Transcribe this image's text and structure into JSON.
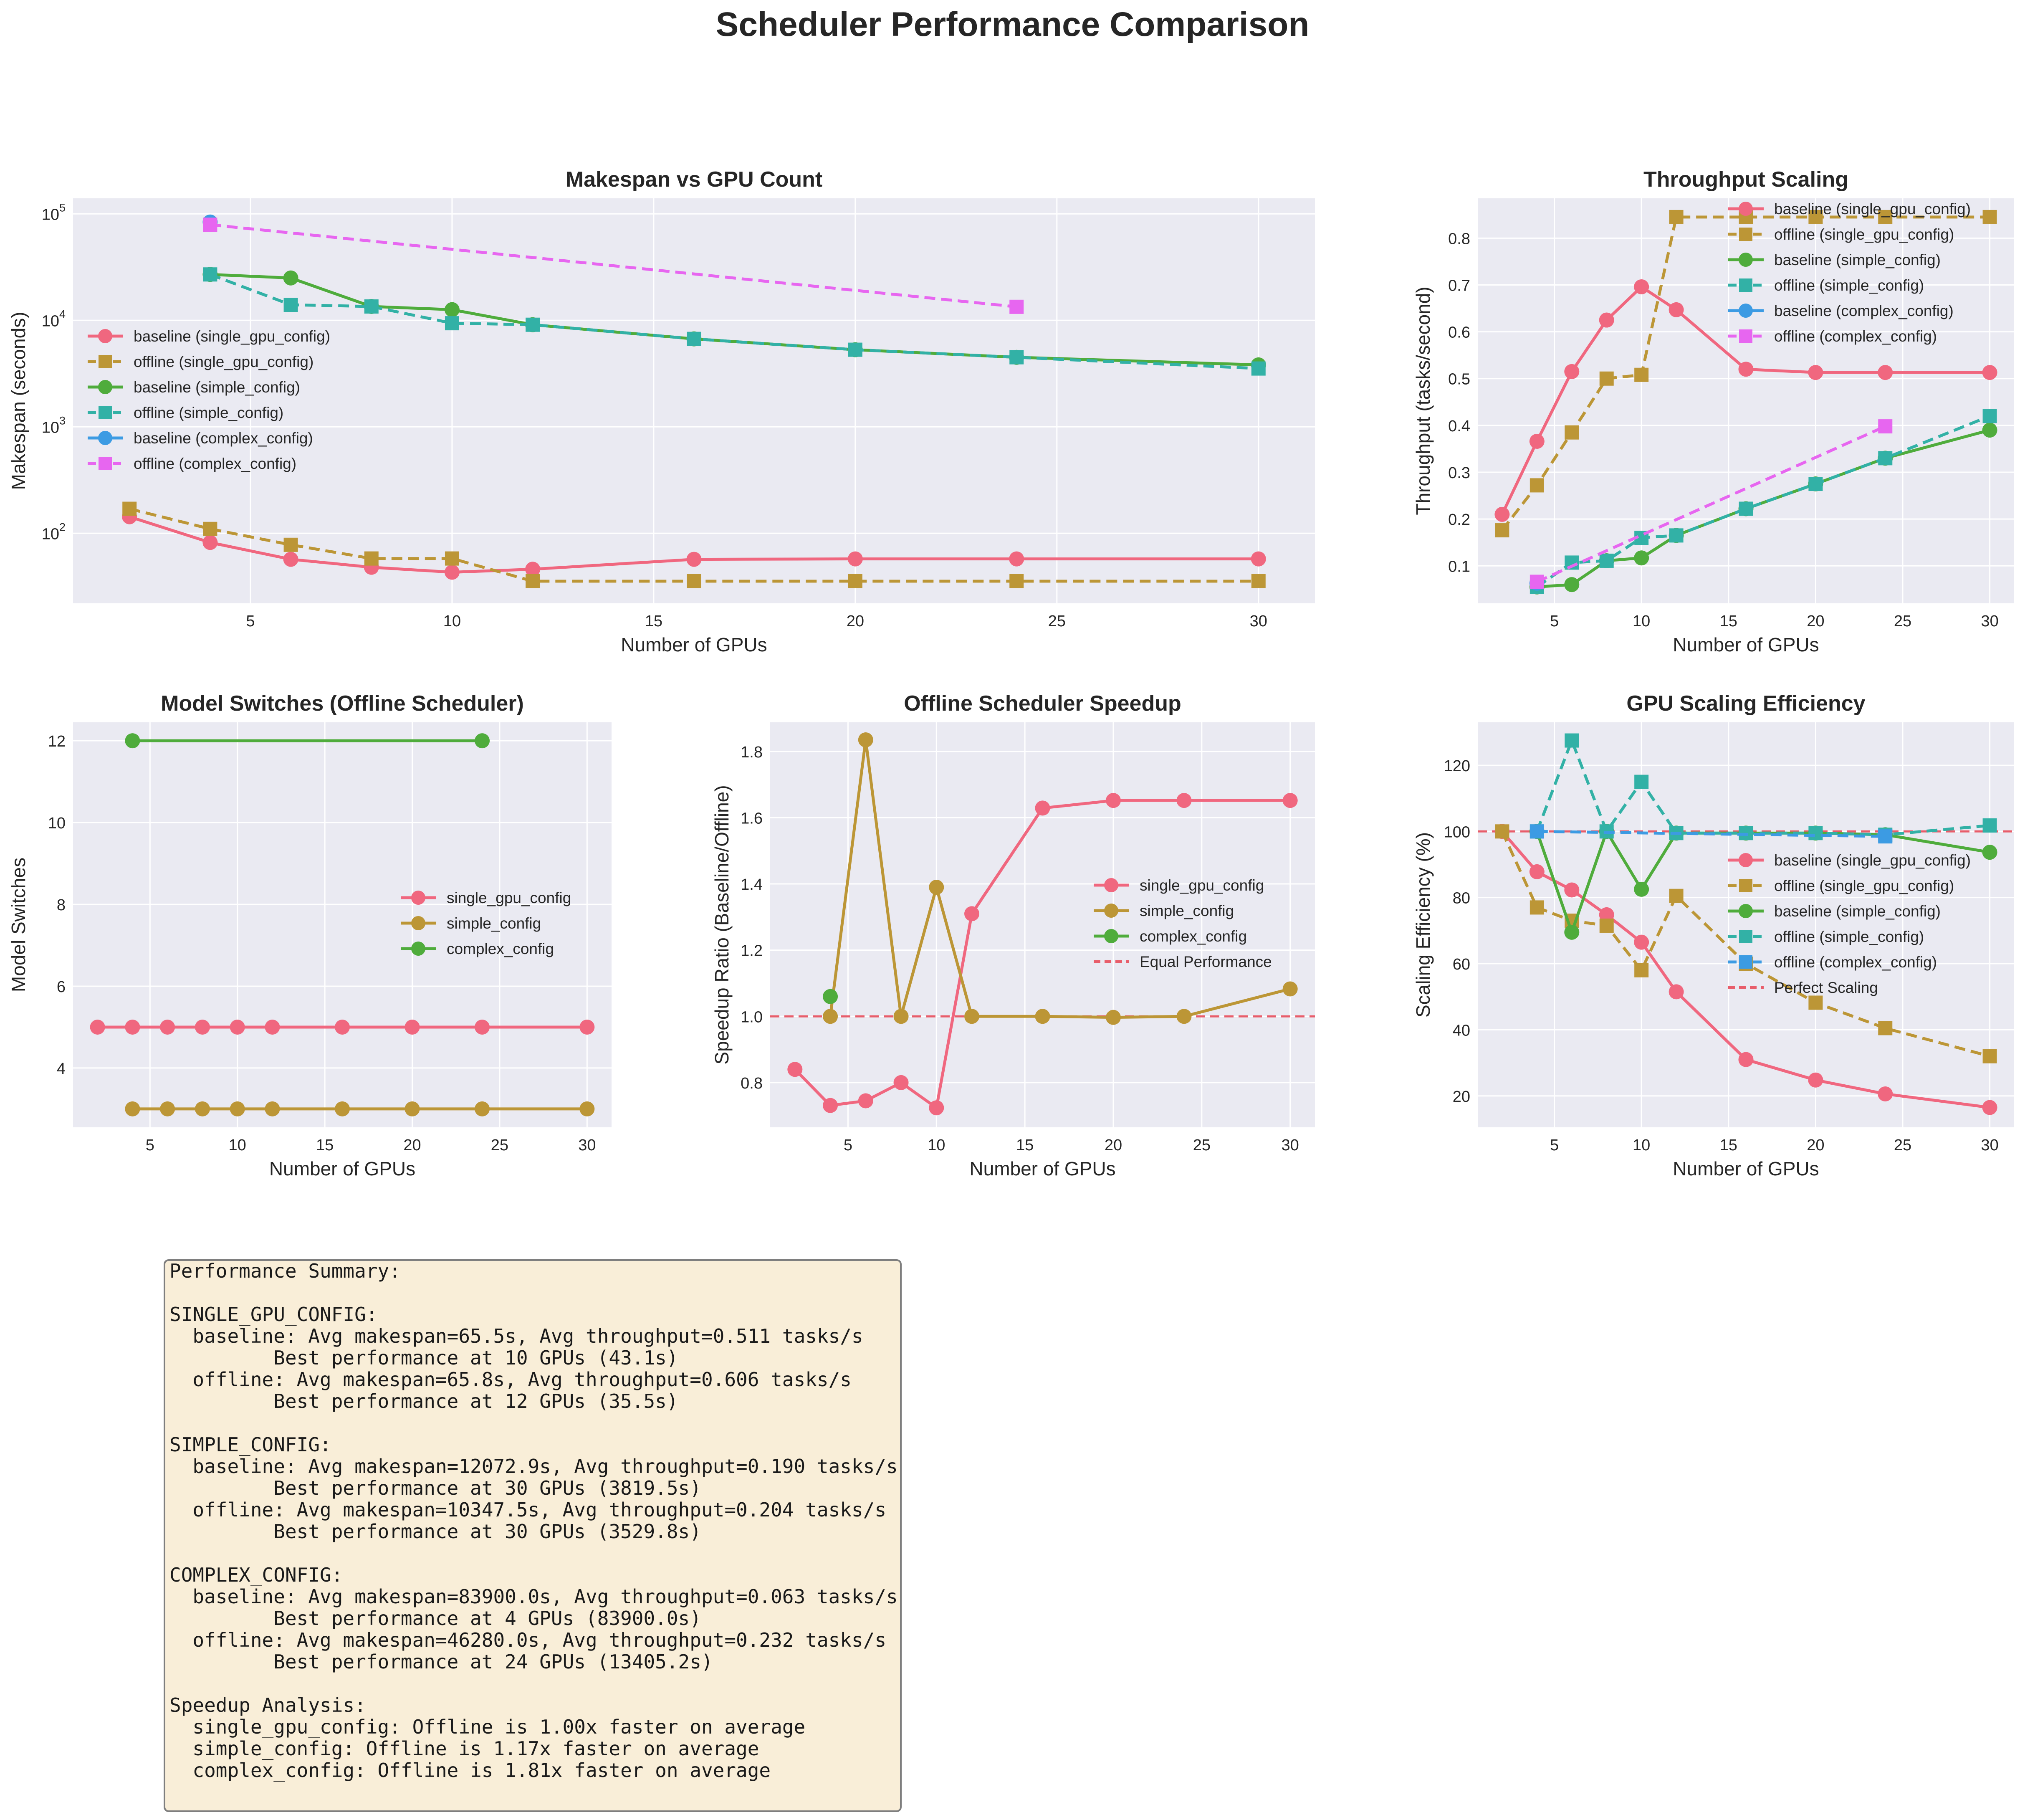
{
  "figure": {
    "title": "Scheduler Performance Comparison",
    "colors": {
      "baseline_single": "#f0677f",
      "offline_single": "#bc9636",
      "baseline_simple": "#4fac3c",
      "offline_simple": "#32b1a6",
      "baseline_complex": "#3c9be3",
      "offline_complex": "#e766f0",
      "reference_line": "#e85d6a"
    }
  },
  "summary": {
    "text": "Performance Summary:\n\nSINGLE_GPU_CONFIG:\n  baseline: Avg makespan=65.5s, Avg throughput=0.511 tasks/s\n         Best performance at 10 GPUs (43.1s)\n  offline: Avg makespan=65.8s, Avg throughput=0.606 tasks/s\n         Best performance at 12 GPUs (35.5s)\n\nSIMPLE_CONFIG:\n  baseline: Avg makespan=12072.9s, Avg throughput=0.190 tasks/s\n         Best performance at 30 GPUs (3819.5s)\n  offline: Avg makespan=10347.5s, Avg throughput=0.204 tasks/s\n         Best performance at 30 GPUs (3529.8s)\n\nCOMPLEX_CONFIG:\n  baseline: Avg makespan=83900.0s, Avg throughput=0.063 tasks/s\n         Best performance at 4 GPUs (83900.0s)\n  offline: Avg makespan=46280.0s, Avg throughput=0.232 tasks/s\n         Best performance at 24 GPUs (13405.2s)\n\nSpeedup Analysis:\n  single_gpu_config: Offline is 1.00x faster on average\n  simple_config: Offline is 1.17x faster on average\n  complex_config: Offline is 1.81x faster on average"
  },
  "chart_data": [
    {
      "type": "line",
      "title": "Makespan vs GPU Count",
      "xlabel": "Number of GPUs",
      "ylabel": "Makespan (seconds)",
      "yscale": "log",
      "xlim": [
        0.6,
        31.4
      ],
      "ylim": [
        22,
        140000
      ],
      "xticks": [
        5,
        10,
        15,
        20,
        25,
        30
      ],
      "yticks": [
        100,
        1000,
        10000,
        100000
      ],
      "ytick_labels": [
        [
          "10",
          "2"
        ],
        [
          "10",
          "3"
        ],
        [
          "10",
          "4"
        ],
        [
          "10",
          "5"
        ]
      ],
      "grid": true,
      "legend_position": "center-left",
      "series": [
        {
          "name": "baseline (single_gpu_config)",
          "color": "baseline_single",
          "dashed": false,
          "marker": "circle",
          "x": [
            2,
            4,
            6,
            8,
            10,
            12,
            16,
            20,
            24,
            30
          ],
          "y": [
            143,
            82,
            57,
            48,
            43.1,
            46,
            57,
            57.5,
            57.5,
            57.5
          ]
        },
        {
          "name": "offline (single_gpu_config)",
          "color": "offline_single",
          "dashed": true,
          "marker": "square",
          "x": [
            2,
            4,
            6,
            8,
            10,
            12,
            16,
            20,
            24,
            30
          ],
          "y": [
            170,
            110,
            78,
            58,
            58,
            35.5,
            35.5,
            35.5,
            35.5,
            35.5
          ]
        },
        {
          "name": "baseline (simple_config)",
          "color": "baseline_simple",
          "dashed": false,
          "marker": "circle",
          "x": [
            4,
            6,
            8,
            10,
            12,
            16,
            20,
            24,
            30
          ],
          "y": [
            27000,
            25000,
            13500,
            12600,
            9100,
            6700,
            5300,
            4500,
            3819.5
          ]
        },
        {
          "name": "offline (simple_config)",
          "color": "offline_simple",
          "dashed": true,
          "marker": "square",
          "x": [
            4,
            6,
            8,
            10,
            12,
            16,
            20,
            24,
            30
          ],
          "y": [
            27000,
            14000,
            13500,
            9400,
            9100,
            6700,
            5300,
            4500,
            3529.8
          ]
        },
        {
          "name": "baseline (complex_config)",
          "color": "baseline_complex",
          "dashed": false,
          "marker": "circle",
          "x": [
            4
          ],
          "y": [
            83900
          ]
        },
        {
          "name": "offline (complex_config)",
          "color": "offline_complex",
          "dashed": true,
          "marker": "square",
          "x": [
            4,
            24
          ],
          "y": [
            79155,
            13405.2
          ]
        }
      ]
    },
    {
      "type": "line",
      "title": "Throughput Scaling",
      "xlabel": "Number of GPUs",
      "ylabel": "Throughput (tasks/second)",
      "xlim": [
        0.6,
        31.4
      ],
      "ylim": [
        0.02,
        0.885
      ],
      "xticks": [
        5,
        10,
        15,
        20,
        25,
        30
      ],
      "yticks": [
        0.1,
        0.2,
        0.3,
        0.4,
        0.5,
        0.6,
        0.7,
        0.8
      ],
      "grid": true,
      "legend_position": "upper right",
      "series": [
        {
          "name": "baseline (single_gpu_config)",
          "color": "baseline_single",
          "dashed": false,
          "marker": "circle",
          "x": [
            2,
            4,
            6,
            8,
            10,
            12,
            16,
            20,
            24,
            30
          ],
          "y": [
            0.21,
            0.366,
            0.515,
            0.625,
            0.696,
            0.647,
            0.52,
            0.513,
            0.513,
            0.513
          ]
        },
        {
          "name": "offline (single_gpu_config)",
          "color": "offline_single",
          "dashed": true,
          "marker": "square",
          "x": [
            2,
            4,
            6,
            8,
            10,
            12,
            16,
            20,
            24,
            30
          ],
          "y": [
            0.176,
            0.272,
            0.385,
            0.5,
            0.508,
            0.845,
            0.845,
            0.845,
            0.845,
            0.845
          ]
        },
        {
          "name": "baseline (simple_config)",
          "color": "baseline_simple",
          "dashed": false,
          "marker": "circle",
          "x": [
            4,
            6,
            8,
            10,
            12,
            16,
            20,
            24,
            30
          ],
          "y": [
            0.055,
            0.06,
            0.111,
            0.117,
            0.165,
            0.222,
            0.275,
            0.33,
            0.39
          ]
        },
        {
          "name": "offline (simple_config)",
          "color": "offline_simple",
          "dashed": true,
          "marker": "square",
          "x": [
            4,
            6,
            8,
            10,
            12,
            16,
            20,
            24,
            30
          ],
          "y": [
            0.055,
            0.107,
            0.111,
            0.16,
            0.165,
            0.222,
            0.275,
            0.33,
            0.42
          ]
        },
        {
          "name": "baseline (complex_config)",
          "color": "baseline_complex",
          "dashed": false,
          "marker": "circle",
          "x": [
            4
          ],
          "y": [
            0.063
          ]
        },
        {
          "name": "offline (complex_config)",
          "color": "offline_complex",
          "dashed": true,
          "marker": "square",
          "x": [
            4,
            24
          ],
          "y": [
            0.066,
            0.398
          ]
        }
      ]
    },
    {
      "type": "line",
      "title": "Model Switches (Offline Scheduler)",
      "xlabel": "Number of GPUs",
      "ylabel": "Model Switches",
      "xlim": [
        0.6,
        31.4
      ],
      "ylim": [
        2.55,
        12.45
      ],
      "xticks": [
        5,
        10,
        15,
        20,
        25,
        30
      ],
      "yticks": [
        4,
        6,
        8,
        10,
        12
      ],
      "grid": true,
      "legend_position": "center-right",
      "series": [
        {
          "name": "single_gpu_config",
          "color": "baseline_single",
          "dashed": false,
          "marker": "circle",
          "x": [
            2,
            4,
            6,
            8,
            10,
            12,
            16,
            20,
            24,
            30
          ],
          "y": [
            5,
            5,
            5,
            5,
            5,
            5,
            5,
            5,
            5,
            5
          ]
        },
        {
          "name": "simple_config",
          "color": "offline_single",
          "dashed": false,
          "marker": "circle",
          "x": [
            4,
            6,
            8,
            10,
            12,
            16,
            20,
            24,
            30
          ],
          "y": [
            3,
            3,
            3,
            3,
            3,
            3,
            3,
            3,
            3
          ]
        },
        {
          "name": "complex_config",
          "color": "baseline_simple",
          "dashed": false,
          "marker": "circle",
          "x": [
            4,
            24
          ],
          "y": [
            12,
            12
          ]
        }
      ]
    },
    {
      "type": "line",
      "title": "Offline Scheduler Speedup",
      "xlabel": "Number of GPUs",
      "ylabel": "Speedup Ratio (Baseline/Offline)",
      "xlim": [
        0.6,
        31.4
      ],
      "ylim": [
        0.665,
        1.888
      ],
      "xticks": [
        5,
        10,
        15,
        20,
        25,
        30
      ],
      "yticks": [
        0.8,
        1.0,
        1.2,
        1.4,
        1.6,
        1.8
      ],
      "grid": true,
      "legend_position": "center-right",
      "reference_line": {
        "y": 1.0,
        "name": "Equal Performance"
      },
      "series": [
        {
          "name": "single_gpu_config",
          "color": "baseline_single",
          "dashed": false,
          "marker": "circle",
          "x": [
            2,
            4,
            6,
            8,
            10,
            12,
            16,
            20,
            24,
            30
          ],
          "y": [
            0.84,
            0.731,
            0.745,
            0.8,
            0.724,
            1.31,
            1.629,
            1.652,
            1.652,
            1.652
          ]
        },
        {
          "name": "simple_config",
          "color": "offline_single",
          "dashed": false,
          "marker": "circle",
          "x": [
            4,
            6,
            8,
            10,
            12,
            16,
            20,
            24,
            30
          ],
          "y": [
            1.0,
            1.835,
            1.0,
            1.39,
            1.0,
            1.0,
            0.997,
            1.0,
            1.083
          ]
        },
        {
          "name": "complex_config",
          "color": "baseline_simple",
          "dashed": false,
          "marker": "circle",
          "x": [
            4
          ],
          "y": [
            1.06
          ]
        }
      ]
    },
    {
      "type": "line",
      "title": "GPU Scaling Efficiency",
      "xlabel": "Number of GPUs",
      "ylabel": "Scaling Efficiency (%)",
      "xlim": [
        0.6,
        31.4
      ],
      "ylim": [
        10.5,
        133
      ],
      "xticks": [
        5,
        10,
        15,
        20,
        25,
        30
      ],
      "yticks": [
        20,
        40,
        60,
        80,
        100,
        120
      ],
      "grid": true,
      "legend_position": "center-right",
      "reference_line": {
        "y": 100,
        "name": "Perfect Scaling"
      },
      "series": [
        {
          "name": "baseline (single_gpu_config)",
          "color": "baseline_single",
          "dashed": false,
          "marker": "circle",
          "x": [
            2,
            4,
            6,
            8,
            10,
            12,
            16,
            20,
            24,
            30
          ],
          "y": [
            100,
            87.8,
            82.3,
            74.8,
            66.5,
            51.5,
            31,
            24.8,
            20.6,
            16.5
          ]
        },
        {
          "name": "offline (single_gpu_config)",
          "color": "offline_single",
          "dashed": true,
          "marker": "square",
          "x": [
            2,
            4,
            6,
            8,
            10,
            12,
            16,
            20,
            24,
            30
          ],
          "y": [
            100,
            77,
            73,
            71.5,
            58,
            80.5,
            60,
            48.2,
            40.5,
            32
          ]
        },
        {
          "name": "baseline (simple_config)",
          "color": "baseline_simple",
          "dashed": false,
          "marker": "circle",
          "x": [
            4,
            6,
            8,
            10,
            12,
            16,
            20,
            24,
            30
          ],
          "y": [
            100,
            69.5,
            100,
            82.5,
            99.5,
            99.5,
            99.5,
            99,
            93.7
          ]
        },
        {
          "name": "offline (simple_config)",
          "color": "offline_simple",
          "dashed": true,
          "marker": "square",
          "x": [
            4,
            6,
            8,
            10,
            12,
            16,
            20,
            24,
            30
          ],
          "y": [
            100,
            127.5,
            100,
            115,
            99.5,
            99.5,
            99.5,
            99,
            101.8
          ]
        },
        {
          "name": "offline (complex_config)",
          "color": "baseline_complex",
          "dashed": true,
          "marker": "square",
          "x": [
            4,
            24
          ],
          "y": [
            100,
            98.5
          ]
        }
      ]
    }
  ]
}
